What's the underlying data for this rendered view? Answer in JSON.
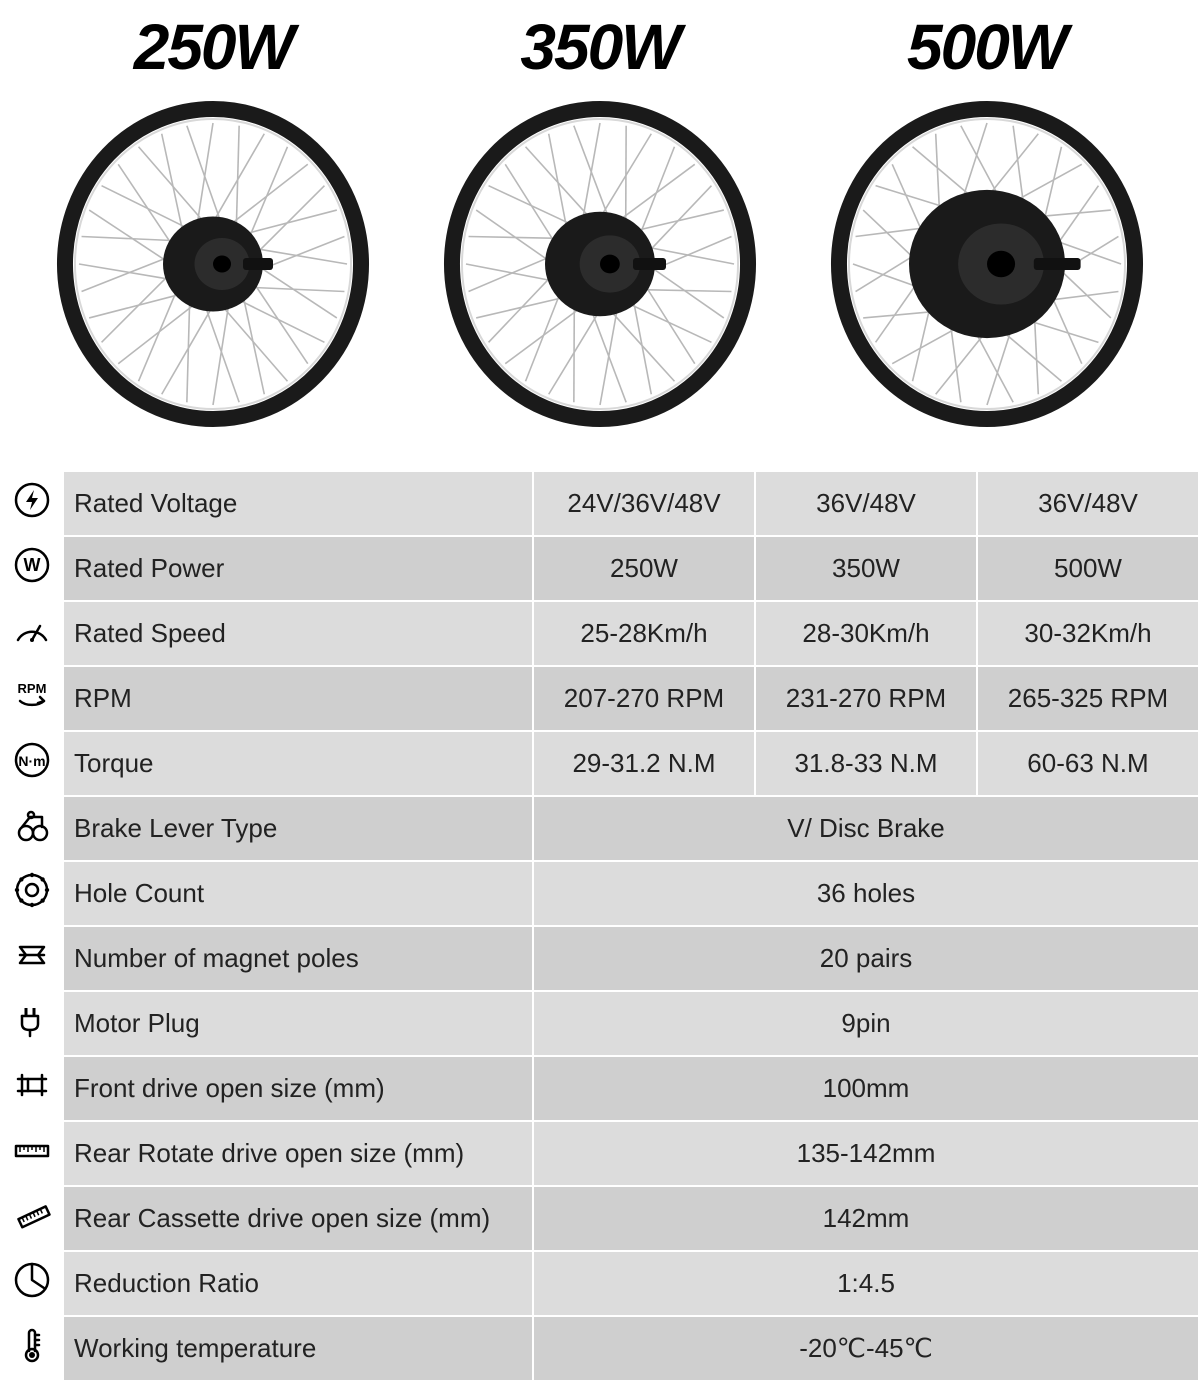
{
  "wheels": {
    "titles": [
      "250W",
      "350W",
      "500W"
    ],
    "hub_radii": [
      50,
      55,
      78
    ],
    "perspective_skew": 0.18,
    "rim_color": "#1a1a1a",
    "rim_highlight": "#d8d8d8",
    "spoke_color": "#b8b8b8",
    "hub_color": "#1a1a1a",
    "hub_face": "#2c2c2c",
    "title_fontsize": 64,
    "title_weight": 900
  },
  "table": {
    "colors": {
      "even": "#dcdcdc",
      "odd": "#cfcfcf",
      "border": "#ffffff",
      "text": "#222222"
    },
    "fontsize": 26,
    "icon_col_width": 60,
    "label_col_width": 470,
    "rows": [
      {
        "icon": "voltage-icon",
        "label": "Rated Voltage",
        "v1": "24V/36V/48V",
        "v2": "36V/48V",
        "v3": "36V/48V"
      },
      {
        "icon": "power-icon",
        "label": "Rated Power",
        "v1": "250W",
        "v2": "350W",
        "v3": "500W"
      },
      {
        "icon": "speed-icon",
        "label": "Rated Speed",
        "v1": "25-28Km/h",
        "v2": "28-30Km/h",
        "v3": "30-32Km/h"
      },
      {
        "icon": "rpm-icon",
        "label": "RPM",
        "v1": "207-270 RPM",
        "v2": "231-270 RPM",
        "v3": "265-325 RPM"
      },
      {
        "icon": "torque-icon",
        "label": "Torque",
        "v1": "29-31.2 N.M",
        "v2": "31.8-33 N.M",
        "v3": "60-63 N.M"
      },
      {
        "icon": "brake-icon",
        "label": "Brake Lever Type",
        "merged": "V/ Disc Brake"
      },
      {
        "icon": "hole-icon",
        "label": "Hole Count",
        "merged": "36 holes"
      },
      {
        "icon": "magnet-icon",
        "label": "Number of magnet poles",
        "merged": "20 pairs"
      },
      {
        "icon": "plug-icon",
        "label": "Motor Plug",
        "merged": "9pin"
      },
      {
        "icon": "caliper-icon",
        "label": "Front drive open size (mm)",
        "merged": "100mm"
      },
      {
        "icon": "ruler-h-icon",
        "label": "Rear Rotate drive open size (mm)",
        "merged": "135-142mm"
      },
      {
        "icon": "ruler-d-icon",
        "label": "Rear Cassette drive open size (mm)",
        "merged": "142mm"
      },
      {
        "icon": "ratio-icon",
        "label": "Reduction Ratio",
        "merged": "1:4.5"
      },
      {
        "icon": "temp-icon",
        "label": "Working temperature",
        "merged": "-20℃-45℃"
      }
    ]
  }
}
